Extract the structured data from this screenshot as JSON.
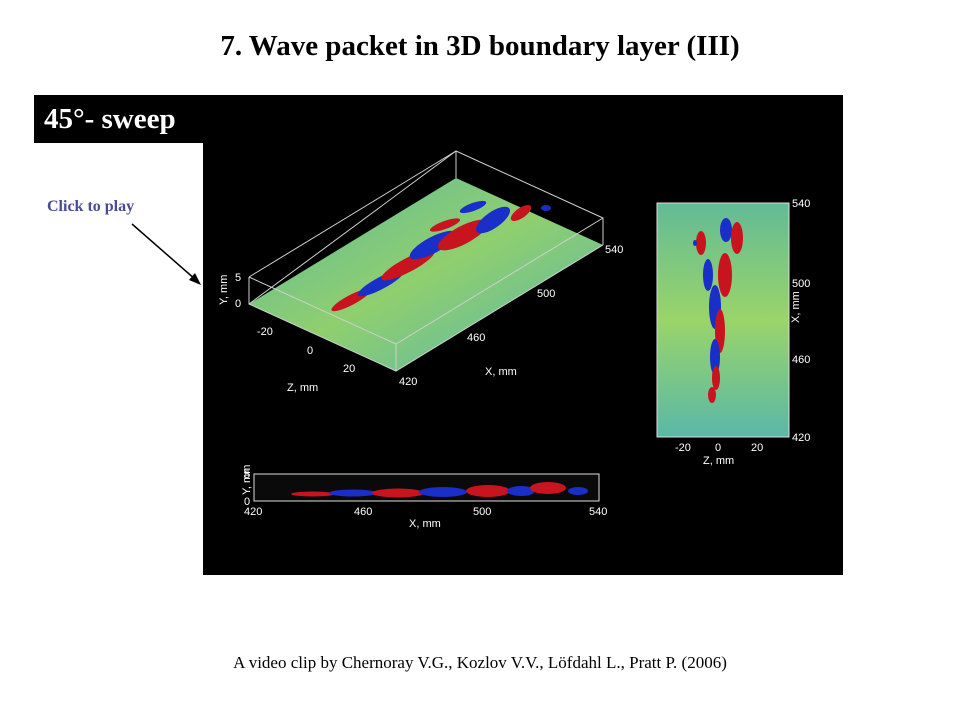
{
  "slide": {
    "title": "7. Wave packet in 3D boundary layer (III)",
    "badge": "45°- sweep",
    "click_label": "Click to play",
    "caption": "A video clip by Chernoray V.G., Kozlov V.V., Löfdahl L., Pratt P. (2006)"
  },
  "video": {
    "view3d": {
      "y_label": "Y, mm",
      "y_ticks": [
        "5",
        "0"
      ],
      "z_label": "Z, mm",
      "z_ticks": [
        "-20",
        "0",
        "20"
      ],
      "x_label": "X, mm",
      "x_ticks": [
        "420",
        "460",
        "500",
        "540"
      ]
    },
    "top_view": {
      "x_label": "X, mm",
      "x_ticks": [
        "540",
        "500",
        "460",
        "420"
      ],
      "z_label": "Z, mm",
      "z_ticks": [
        "-20",
        "0",
        "20"
      ]
    },
    "side_view": {
      "y_label": "Y, mm",
      "y_ticks": [
        "5",
        "0"
      ],
      "x_label": "X, mm",
      "x_ticks": [
        "420",
        "460",
        "500",
        "540"
      ]
    }
  },
  "colors": {
    "background": "#000000",
    "field": "#6fc28f",
    "positive": "#c8141e",
    "negative": "#1a2ec8",
    "link": "#4a4a9a"
  }
}
